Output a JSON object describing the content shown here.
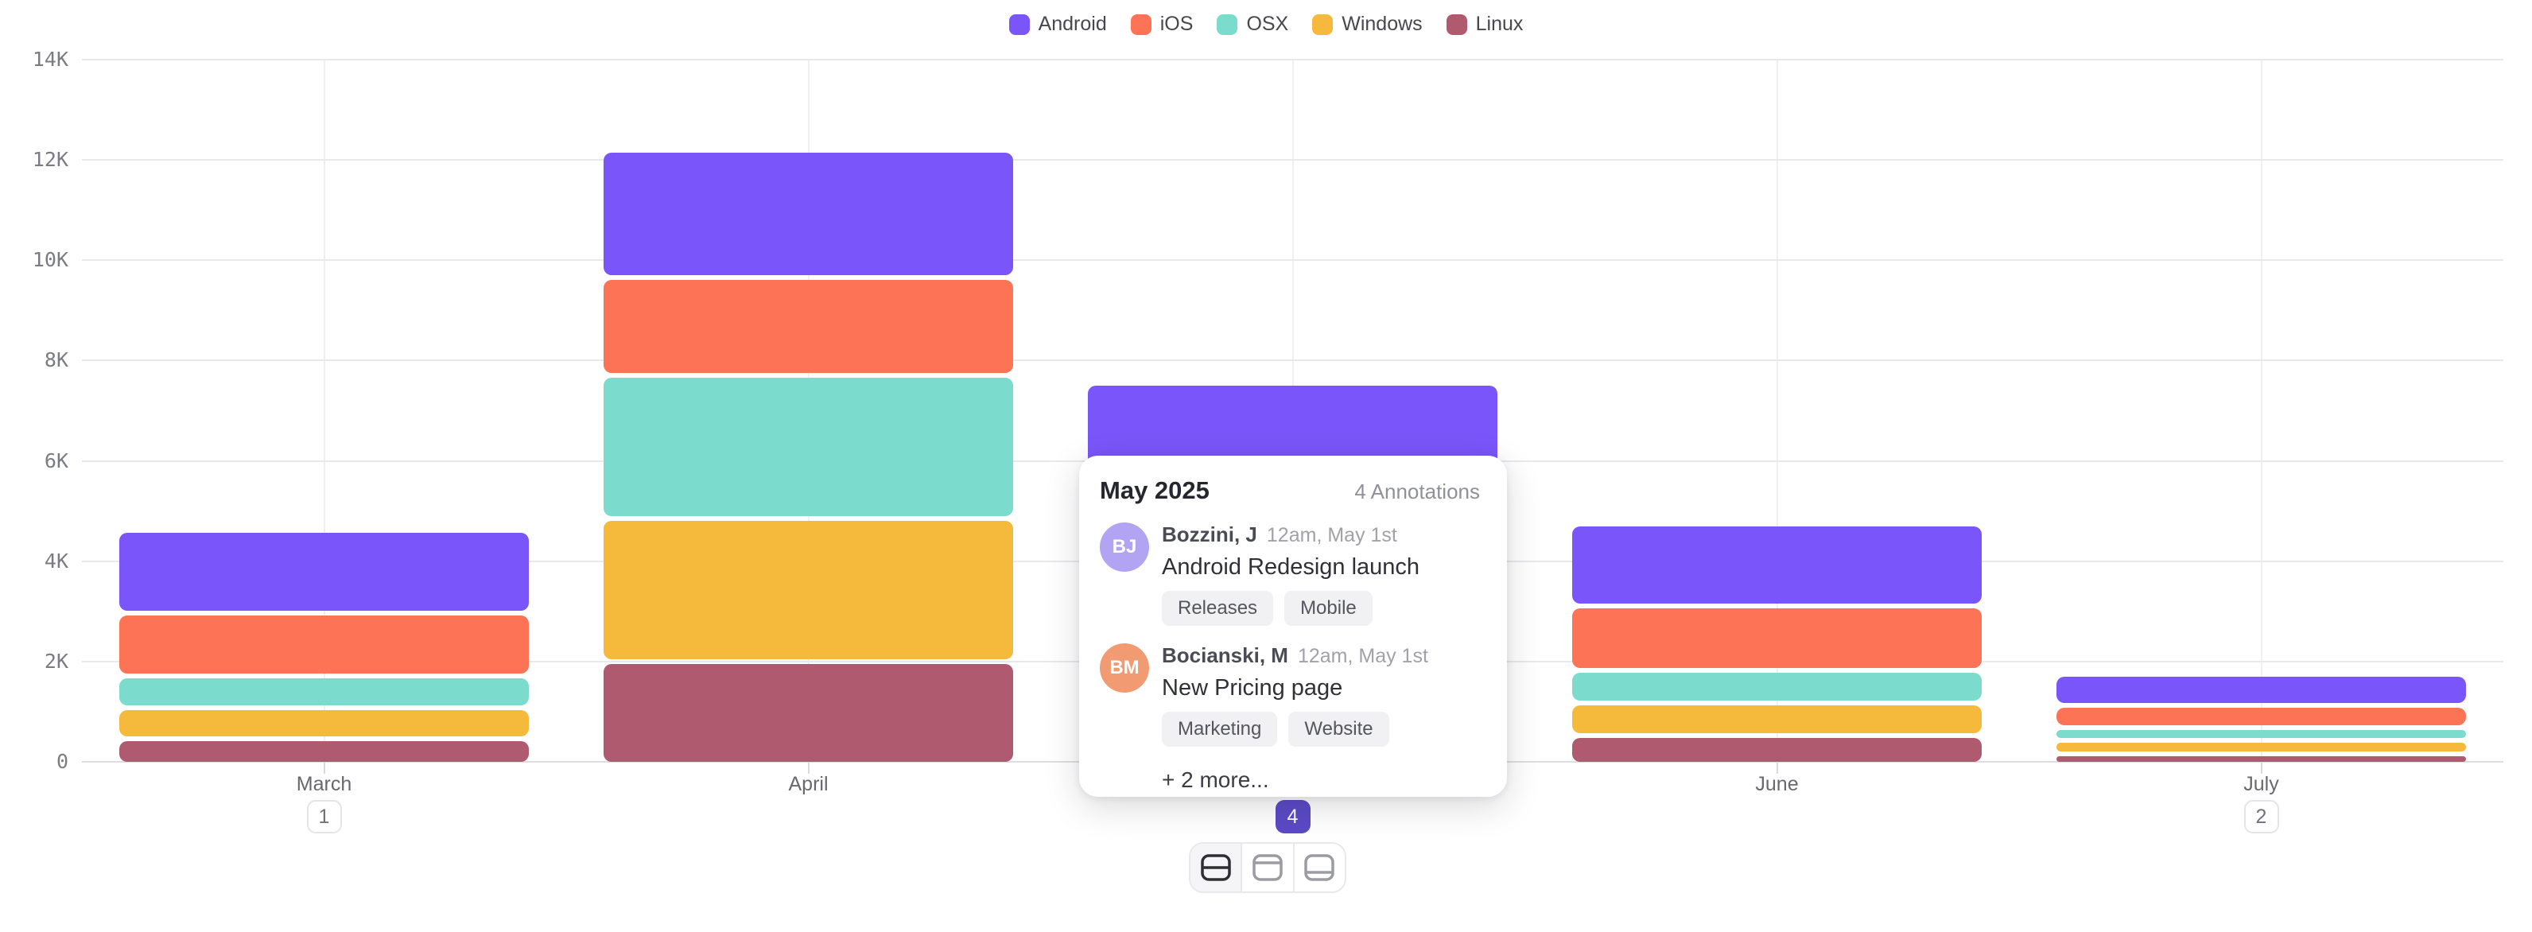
{
  "chart_data": {
    "type": "bar",
    "stacked": true,
    "categories": [
      "March",
      "April",
      "May",
      "June",
      "July"
    ],
    "series": [
      {
        "name": "Android",
        "color": "#7a55fa",
        "values": [
          1600,
          2500,
          2600,
          1590,
          570
        ]
      },
      {
        "name": "iOS",
        "color": "#fd7356",
        "values": [
          1250,
          1950,
          1900,
          1290,
          450
        ]
      },
      {
        "name": "OSX",
        "color": "#7bdcce",
        "values": [
          640,
          2850,
          1100,
          640,
          250
        ]
      },
      {
        "name": "Windows",
        "color": "#f5b93c",
        "values": [
          620,
          2850,
          1100,
          660,
          270
        ]
      },
      {
        "name": "Linux",
        "color": "#af5a6f",
        "values": [
          460,
          2000,
          800,
          520,
          160
        ]
      }
    ],
    "ylim": [
      0,
      14000
    ],
    "y_ticks": [
      "0",
      "2K",
      "4K",
      "6K",
      "8K",
      "10K",
      "12K",
      "14K"
    ],
    "title": "",
    "xlabel": "",
    "ylabel": "",
    "grid": true,
    "legend_position": "top",
    "annotation_badges": [
      {
        "month": "March",
        "count": "1",
        "selected": false
      },
      {
        "month": "May",
        "count": "4",
        "selected": true
      },
      {
        "month": "July",
        "count": "2",
        "selected": false
      }
    ]
  },
  "popover": {
    "title": "May 2025",
    "count_label": "4 Annotations",
    "annotations": [
      {
        "initials": "BJ",
        "avatar_color": "#b2a4f2",
        "author": "Bozzini, J",
        "timestamp": "12am, May 1st",
        "title": "Android Redesign launch",
        "tags": [
          "Releases",
          "Mobile"
        ]
      },
      {
        "initials": "BM",
        "avatar_color": "#f29b73",
        "author": "Bocianski, M",
        "timestamp": "12am, May 1st",
        "title": "New Pricing page",
        "tags": [
          "Marketing",
          "Website"
        ]
      }
    ],
    "more_label": "+ 2 more..."
  },
  "layout_switcher": {
    "options": [
      {
        "name": "layout-split-middle",
        "active": true
      },
      {
        "name": "layout-panel-top",
        "active": false
      },
      {
        "name": "layout-panel-bottom",
        "active": false
      }
    ]
  }
}
